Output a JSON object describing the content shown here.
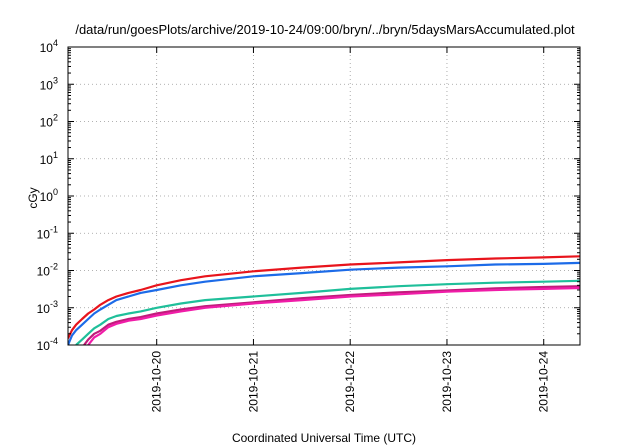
{
  "chart_data": {
    "type": "line",
    "title": "/data/run/goesPlots/archive/2019-10-24/09:00/bryn/../bryn/5daysMarsAccumulated.plot",
    "xlabel": "Coordinated Universal Time (UTC)",
    "ylabel": "cGy",
    "y_scale": "log",
    "ylim": [
      0.0001,
      10000
    ],
    "xlim": [
      "2019-10-19T02:00",
      "2019-10-24T09:00"
    ],
    "y_ticks": [
      {
        "base": "10",
        "exp": "-4",
        "value": 0.0001
      },
      {
        "base": "10",
        "exp": "-3",
        "value": 0.001
      },
      {
        "base": "10",
        "exp": "-2",
        "value": 0.01
      },
      {
        "base": "10",
        "exp": "-1",
        "value": 0.1
      },
      {
        "base": "10",
        "exp": "0",
        "value": 1
      },
      {
        "base": "10",
        "exp": "1",
        "value": 10
      },
      {
        "base": "10",
        "exp": "2",
        "value": 100
      },
      {
        "base": "10",
        "exp": "3",
        "value": 1000
      },
      {
        "base": "10",
        "exp": "4",
        "value": 10000
      }
    ],
    "x_ticks": [
      "2019-10-20",
      "2019-10-21",
      "2019-10-22",
      "2019-10-23",
      "2019-10-24"
    ],
    "grid": true,
    "legend": "none",
    "series": [
      {
        "color": "#e8141c",
        "points": [
          [
            "2019-10-19T02:00",
            0.00015
          ],
          [
            "2019-10-19T03:00",
            0.00025
          ],
          [
            "2019-10-19T04:00",
            0.00035
          ],
          [
            "2019-10-19T05:30",
            0.0005
          ],
          [
            "2019-10-19T07:00",
            0.0007
          ],
          [
            "2019-10-19T08:30",
            0.0009
          ],
          [
            "2019-10-19T10:00",
            0.0012
          ],
          [
            "2019-10-19T12:00",
            0.0016
          ],
          [
            "2019-10-19T14:00",
            0.002
          ],
          [
            "2019-10-19T17:00",
            0.0025
          ],
          [
            "2019-10-19T20:00",
            0.003
          ],
          [
            "2019-10-20T00:00",
            0.004
          ],
          [
            "2019-10-20T06:00",
            0.0055
          ],
          [
            "2019-10-20T12:00",
            0.007
          ],
          [
            "2019-10-21T00:00",
            0.0095
          ],
          [
            "2019-10-21T12:00",
            0.012
          ],
          [
            "2019-10-22T00:00",
            0.0145
          ],
          [
            "2019-10-22T12:00",
            0.0165
          ],
          [
            "2019-10-23T00:00",
            0.019
          ],
          [
            "2019-10-23T12:00",
            0.021
          ],
          [
            "2019-10-24T00:00",
            0.0225
          ],
          [
            "2019-10-24T09:00",
            0.024
          ]
        ]
      },
      {
        "color": "#1c6be8",
        "points": [
          [
            "2019-10-19T02:00",
            0.0001
          ],
          [
            "2019-10-19T03:00",
            0.00018
          ],
          [
            "2019-10-19T04:00",
            0.00025
          ],
          [
            "2019-10-19T05:30",
            0.00035
          ],
          [
            "2019-10-19T07:00",
            0.0005
          ],
          [
            "2019-10-19T08:30",
            0.0007
          ],
          [
            "2019-10-19T10:00",
            0.0009
          ],
          [
            "2019-10-19T12:00",
            0.0012
          ],
          [
            "2019-10-19T14:00",
            0.0016
          ],
          [
            "2019-10-19T17:00",
            0.002
          ],
          [
            "2019-10-19T20:00",
            0.0025
          ],
          [
            "2019-10-20T00:00",
            0.003
          ],
          [
            "2019-10-20T06:00",
            0.004
          ],
          [
            "2019-10-20T12:00",
            0.005
          ],
          [
            "2019-10-21T00:00",
            0.007
          ],
          [
            "2019-10-21T12:00",
            0.0085
          ],
          [
            "2019-10-22T00:00",
            0.0105
          ],
          [
            "2019-10-22T12:00",
            0.012
          ],
          [
            "2019-10-23T00:00",
            0.013
          ],
          [
            "2019-10-23T12:00",
            0.0145
          ],
          [
            "2019-10-24T00:00",
            0.015
          ],
          [
            "2019-10-24T09:00",
            0.016
          ]
        ]
      },
      {
        "color": "#1fbf9a",
        "points": [
          [
            "2019-10-19T04:00",
            0.0001
          ],
          [
            "2019-10-19T05:30",
            0.00014
          ],
          [
            "2019-10-19T07:00",
            0.0002
          ],
          [
            "2019-10-19T08:30",
            0.00028
          ],
          [
            "2019-10-19T10:00",
            0.00035
          ],
          [
            "2019-10-19T12:00",
            0.0005
          ],
          [
            "2019-10-19T14:00",
            0.0006
          ],
          [
            "2019-10-19T17:00",
            0.0007
          ],
          [
            "2019-10-19T20:00",
            0.0008
          ],
          [
            "2019-10-20T00:00",
            0.001
          ],
          [
            "2019-10-20T06:00",
            0.0013
          ],
          [
            "2019-10-20T12:00",
            0.0016
          ],
          [
            "2019-10-21T00:00",
            0.002
          ],
          [
            "2019-10-21T12:00",
            0.0025
          ],
          [
            "2019-10-22T00:00",
            0.0032
          ],
          [
            "2019-10-22T12:00",
            0.0038
          ],
          [
            "2019-10-23T00:00",
            0.0043
          ],
          [
            "2019-10-23T12:00",
            0.0047
          ],
          [
            "2019-10-24T00:00",
            0.005
          ],
          [
            "2019-10-24T09:00",
            0.0053
          ]
        ]
      },
      {
        "color": "#c01c7a",
        "points": [
          [
            "2019-10-19T06:00",
            0.0001
          ],
          [
            "2019-10-19T07:00",
            0.00014
          ],
          [
            "2019-10-19T08:30",
            0.0002
          ],
          [
            "2019-10-19T10:00",
            0.00024
          ],
          [
            "2019-10-19T12:00",
            0.00035
          ],
          [
            "2019-10-19T14:00",
            0.00042
          ],
          [
            "2019-10-19T17:00",
            0.0005
          ],
          [
            "2019-10-19T20:00",
            0.00056
          ],
          [
            "2019-10-20T00:00",
            0.0007
          ],
          [
            "2019-10-20T06:00",
            0.0009
          ],
          [
            "2019-10-20T12:00",
            0.0011
          ],
          [
            "2019-10-21T00:00",
            0.0014
          ],
          [
            "2019-10-21T12:00",
            0.0018
          ],
          [
            "2019-10-22T00:00",
            0.0022
          ],
          [
            "2019-10-22T12:00",
            0.0026
          ],
          [
            "2019-10-23T00:00",
            0.0029
          ],
          [
            "2019-10-23T12:00",
            0.0033
          ],
          [
            "2019-10-24T00:00",
            0.0036
          ],
          [
            "2019-10-24T09:00",
            0.0038
          ]
        ]
      },
      {
        "color": "#f01ca8",
        "points": [
          [
            "2019-10-19T07:00",
            0.0001
          ],
          [
            "2019-10-19T08:30",
            0.00016
          ],
          [
            "2019-10-19T10:00",
            0.0002
          ],
          [
            "2019-10-19T12:00",
            0.0003
          ],
          [
            "2019-10-19T14:00",
            0.00037
          ],
          [
            "2019-10-19T17:00",
            0.00045
          ],
          [
            "2019-10-19T20:00",
            0.0005
          ],
          [
            "2019-10-20T00:00",
            0.00062
          ],
          [
            "2019-10-20T06:00",
            0.0008
          ],
          [
            "2019-10-20T12:00",
            0.001
          ],
          [
            "2019-10-21T00:00",
            0.0013
          ],
          [
            "2019-10-21T12:00",
            0.0016
          ],
          [
            "2019-10-22T00:00",
            0.002
          ],
          [
            "2019-10-22T12:00",
            0.0023
          ],
          [
            "2019-10-23T00:00",
            0.0027
          ],
          [
            "2019-10-23T12:00",
            0.003
          ],
          [
            "2019-10-24T00:00",
            0.0032
          ],
          [
            "2019-10-24T09:00",
            0.0034
          ]
        ]
      }
    ]
  }
}
